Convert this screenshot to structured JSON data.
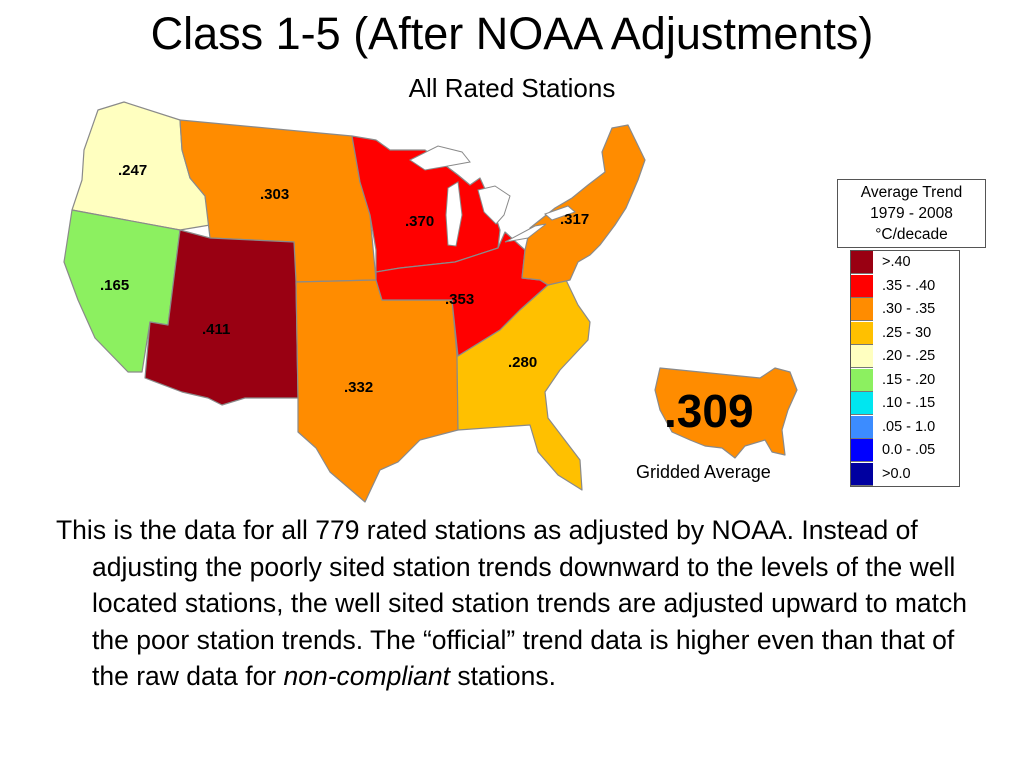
{
  "title": "Class 1-5 (After NOAA Adjustments)",
  "subtitle": "All Rated Stations",
  "colors": {
    "gt_040": "#990012",
    "r035_040": "#ff0000",
    "r030_035": "#ff8c00",
    "r025_030": "#ffc000",
    "r020_025": "#ffffc0",
    "r015_020": "#8cf060",
    "r010_015": "#00e6f0",
    "r005_010": "#3c8cff",
    "r000_005": "#0000ff",
    "lt_000": "#0000a0",
    "outline": "#8a8a8a"
  },
  "regions": [
    {
      "name": "Northwest",
      "value": ".247",
      "color": "#ffffc0"
    },
    {
      "name": "West",
      "value": ".165",
      "color": "#8cf060"
    },
    {
      "name": "Northern Rockies and Plains",
      "value": ".303",
      "color": "#ff8c00"
    },
    {
      "name": "Southwest",
      "value": ".411",
      "color": "#990012"
    },
    {
      "name": "South",
      "value": ".332",
      "color": "#ff8c00"
    },
    {
      "name": "Upper Midwest",
      "value": ".370",
      "color": "#ff0000"
    },
    {
      "name": "Ohio Valley",
      "value": ".353",
      "color": "#ff0000"
    },
    {
      "name": "Southeast",
      "value": ".280",
      "color": "#ffc000"
    },
    {
      "name": "Northeast",
      "value": ".317",
      "color": "#ff8c00"
    }
  ],
  "gridded": {
    "value": ".309",
    "caption": "Gridded Average",
    "color": "#ff8c00"
  },
  "legend": {
    "title_lines": [
      "Average Trend",
      "1979 - 2008",
      "°C/decade"
    ],
    "items": [
      {
        "label": ">.40",
        "color": "#990012"
      },
      {
        "label": ".35 - .40",
        "color": "#ff0000"
      },
      {
        "label": ".30 - .35",
        "color": "#ff8c00"
      },
      {
        "label": ".25 - 30",
        "color": "#ffc000"
      },
      {
        "label": ".20 - .25",
        "color": "#ffffc0"
      },
      {
        "label": ".15 - .20",
        "color": "#8cf060"
      },
      {
        "label": ".10 - .15",
        "color": "#00e6f0"
      },
      {
        "label": ".05 - 1.0",
        "color": "#3c8cff"
      },
      {
        "label": "0.0 - .05",
        "color": "#0000ff"
      },
      {
        "label": ">0.0",
        "color": "#0000a0"
      }
    ]
  },
  "body": {
    "text_before": "This is the data for all 779 rated stations as adjusted by NOAA. Instead of adjusting the poorly sited station trends downward to the levels of the well located stations, the well sited station trends are adjusted upward to match the poor station trends. The “official” trend data is higher even than that of the raw data for ",
    "text_emphasis": "non-compliant",
    "text_after": " stations."
  }
}
